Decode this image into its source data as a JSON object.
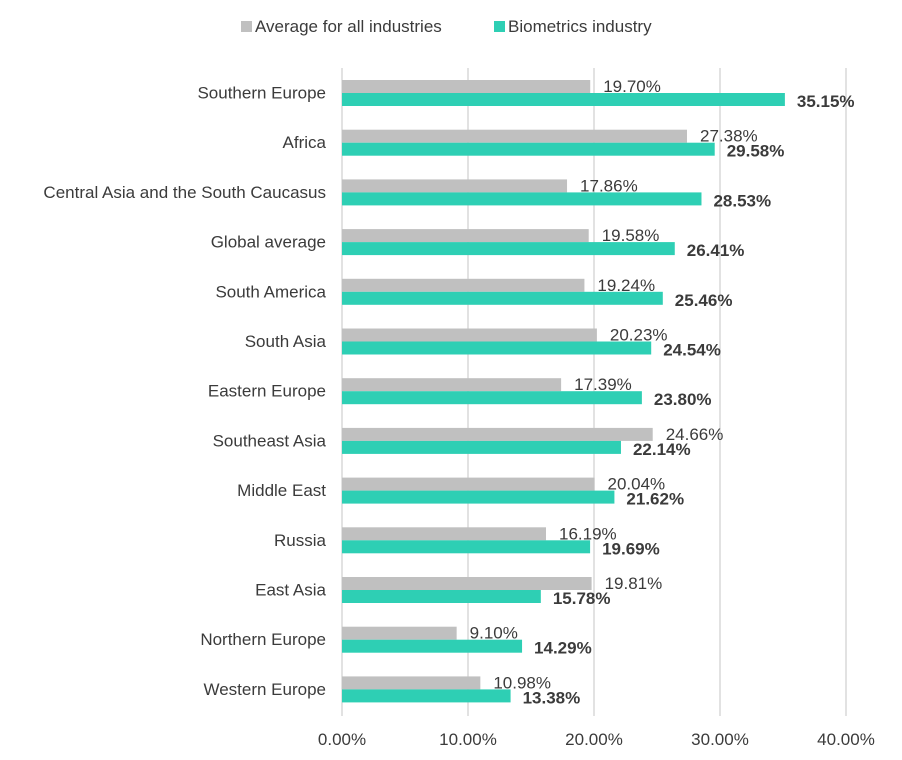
{
  "chart_data": {
    "type": "bar",
    "orientation": "horizontal",
    "categories": [
      "Southern Europe",
      "Africa",
      "Central Asia and the South Caucasus",
      "Global average",
      "South America",
      "South Asia",
      "Eastern Europe",
      "Southeast Asia",
      "Middle East",
      "Russia",
      "East Asia",
      "Northern Europe",
      "Western Europe"
    ],
    "series": [
      {
        "name": "Average for all industries",
        "color": "#c0c0c0",
        "values": [
          19.7,
          27.38,
          17.86,
          19.58,
          19.24,
          20.23,
          17.39,
          24.66,
          20.04,
          16.19,
          19.81,
          9.1,
          10.98
        ],
        "labels": [
          "19.70%",
          "27.38%",
          "17.86%",
          "19.58%",
          "19.24%",
          "20.23%",
          "17.39%",
          "24.66%",
          "20.04%",
          "16.19%",
          "19.81%",
          "9.10%",
          "10.98%"
        ]
      },
      {
        "name": "Biometrics industry",
        "color": "#2ecfb4",
        "values": [
          35.15,
          29.58,
          28.53,
          26.41,
          25.46,
          24.54,
          23.8,
          22.14,
          21.62,
          19.69,
          15.78,
          14.29,
          13.38
        ],
        "labels": [
          "35.15%",
          "29.58%",
          "28.53%",
          "26.41%",
          "25.46%",
          "24.54%",
          "23.80%",
          "22.14%",
          "21.62%",
          "19.69%",
          "15.78%",
          "14.29%",
          "13.38%"
        ]
      }
    ],
    "x_ticks": [
      0,
      10,
      20,
      30,
      40
    ],
    "x_tick_labels": [
      "0.00%",
      "10.00%",
      "20.00%",
      "30.00%",
      "40.00%"
    ],
    "xlim": [
      0,
      40
    ],
    "title": "",
    "xlabel": "",
    "ylabel": "",
    "grid": "vertical",
    "legend_position": "top"
  }
}
